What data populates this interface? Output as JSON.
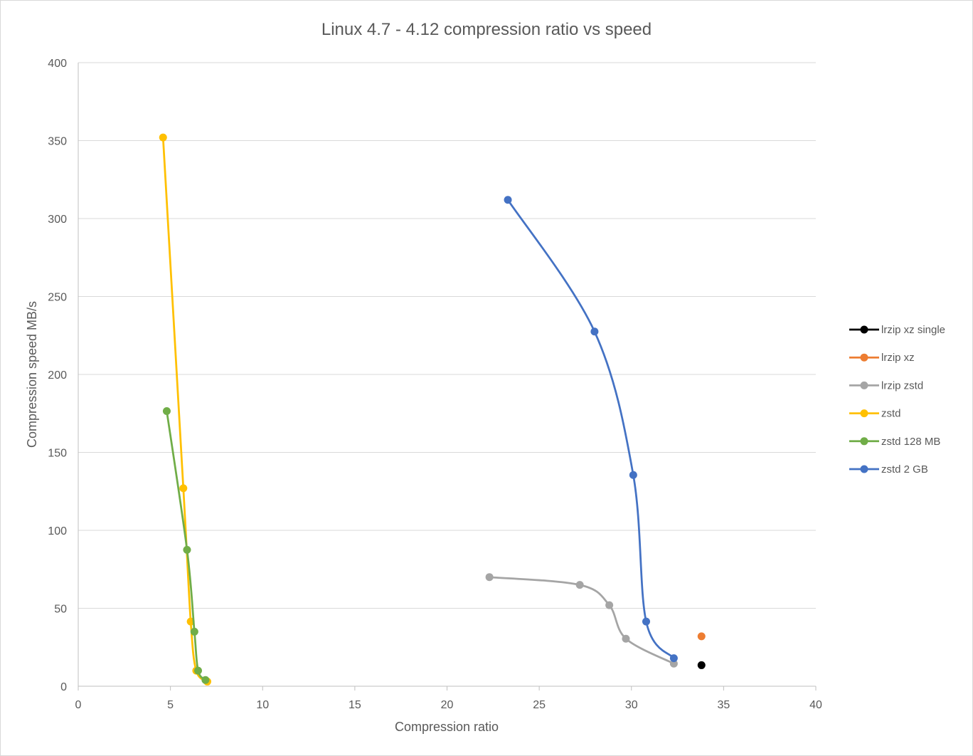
{
  "chart_data": {
    "type": "scatter",
    "title": "Linux 4.7 - 4.12 compression ratio vs speed",
    "xlabel": "Compression ratio",
    "ylabel": "Compression speed MB/s",
    "xlim": [
      0,
      40
    ],
    "ylim": [
      0,
      400
    ],
    "x_ticks": [
      0,
      5,
      10,
      15,
      20,
      25,
      30,
      35,
      40
    ],
    "y_ticks": [
      0,
      50,
      100,
      150,
      200,
      250,
      300,
      350,
      400
    ],
    "grid": "horizontal",
    "legend_position": "right",
    "series": [
      {
        "name": "lrzip xz single",
        "color": "#000000",
        "lines": false,
        "points": [
          [
            33.8,
            13.5
          ]
        ]
      },
      {
        "name": "lrzip xz",
        "color": "#ed7d31",
        "lines": false,
        "points": [
          [
            33.8,
            32
          ]
        ]
      },
      {
        "name": "lrzip zstd",
        "color": "#a5a5a5",
        "lines": true,
        "points": [
          [
            22.3,
            70
          ],
          [
            27.2,
            65
          ],
          [
            28.8,
            52
          ],
          [
            29.7,
            30.5
          ],
          [
            32.3,
            14.5
          ]
        ]
      },
      {
        "name": "zstd",
        "color": "#ffc000",
        "lines": true,
        "points": [
          [
            4.6,
            352
          ],
          [
            5.7,
            127
          ],
          [
            6.1,
            41.5
          ],
          [
            6.4,
            10
          ],
          [
            7.0,
            3
          ]
        ]
      },
      {
        "name": "zstd 128 MB",
        "color": "#70ad47",
        "lines": true,
        "points": [
          [
            4.8,
            176.5
          ],
          [
            5.9,
            87.5
          ],
          [
            6.3,
            35
          ],
          [
            6.5,
            10
          ],
          [
            6.9,
            4
          ]
        ]
      },
      {
        "name": "zstd 2 GB",
        "color": "#4472c4",
        "lines": true,
        "points": [
          [
            23.3,
            312
          ],
          [
            28.0,
            227.5
          ],
          [
            30.1,
            135.5
          ],
          [
            30.8,
            41.5
          ],
          [
            32.3,
            18
          ]
        ]
      }
    ]
  }
}
